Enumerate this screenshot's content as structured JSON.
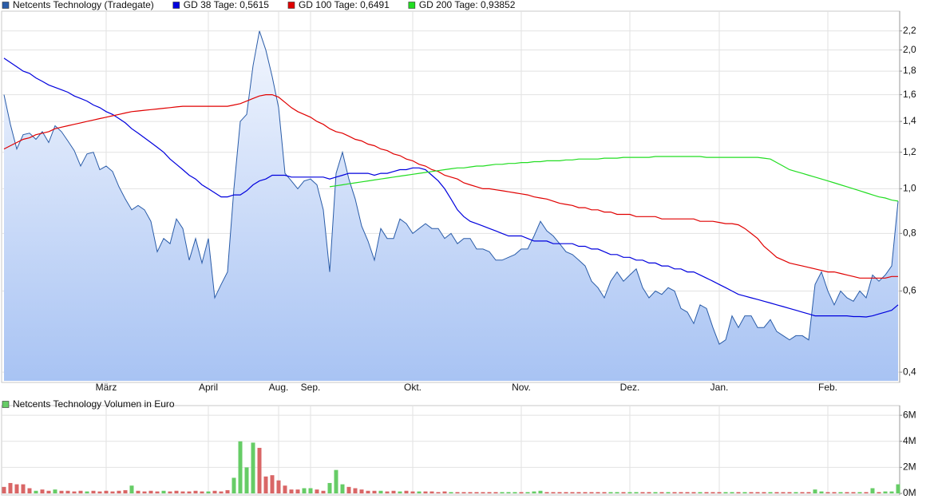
{
  "chart_data": [
    {
      "type": "line",
      "log_scale_y": true,
      "grid": true,
      "categories": [
        null,
        null,
        null,
        null,
        null,
        null,
        null,
        null,
        null,
        null,
        null,
        null,
        null,
        null,
        null,
        null,
        "März",
        null,
        null,
        null,
        null,
        null,
        null,
        null,
        null,
        null,
        null,
        null,
        null,
        null,
        null,
        null,
        "April",
        null,
        null,
        null,
        null,
        null,
        null,
        null,
        null,
        null,
        null,
        "Aug.",
        null,
        null,
        null,
        null,
        "Sep.",
        null,
        null,
        null,
        null,
        null,
        null,
        null,
        null,
        null,
        null,
        null,
        null,
        null,
        null,
        null,
        "Okt.",
        null,
        null,
        null,
        null,
        null,
        null,
        null,
        null,
        null,
        null,
        null,
        null,
        null,
        null,
        null,
        null,
        "Nov.",
        null,
        null,
        null,
        null,
        null,
        null,
        null,
        null,
        null,
        null,
        null,
        null,
        null,
        null,
        null,
        null,
        "Dez.",
        null,
        null,
        null,
        null,
        null,
        null,
        null,
        null,
        null,
        null,
        null,
        null,
        null,
        "Jan.",
        null,
        null,
        null,
        null,
        null,
        null,
        null,
        null,
        null,
        null,
        null,
        null,
        null,
        null,
        null,
        null,
        "Feb.",
        null,
        null,
        null,
        null,
        null,
        null,
        null,
        null,
        null,
        null,
        null
      ],
      "series": [
        {
          "name": "Netcents Technology (Tradegate)",
          "color": "#2a5ca8",
          "area": true,
          "values": [
            1.6,
            1.38,
            1.22,
            1.31,
            1.32,
            1.28,
            1.33,
            1.26,
            1.37,
            1.33,
            1.27,
            1.21,
            1.12,
            1.19,
            1.2,
            1.1,
            1.12,
            1.09,
            1.01,
            0.95,
            0.9,
            0.92,
            0.9,
            0.85,
            0.73,
            0.78,
            0.76,
            0.86,
            0.82,
            0.7,
            0.78,
            0.69,
            0.78,
            0.58,
            0.62,
            0.66,
            1.0,
            1.4,
            1.45,
            1.85,
            2.2,
            2.0,
            1.75,
            1.5,
            1.08,
            1.04,
            1.0,
            1.04,
            1.05,
            1.02,
            0.9,
            0.66,
            1.08,
            1.2,
            1.05,
            0.95,
            0.83,
            0.77,
            0.7,
            0.82,
            0.78,
            0.78,
            0.86,
            0.84,
            0.8,
            0.82,
            0.84,
            0.82,
            0.82,
            0.78,
            0.8,
            0.76,
            0.78,
            0.78,
            0.74,
            0.74,
            0.73,
            0.7,
            0.7,
            0.71,
            0.72,
            0.74,
            0.74,
            0.79,
            0.85,
            0.81,
            0.79,
            0.76,
            0.73,
            0.72,
            0.7,
            0.68,
            0.63,
            0.61,
            0.58,
            0.63,
            0.66,
            0.63,
            0.65,
            0.67,
            0.61,
            0.58,
            0.6,
            0.59,
            0.61,
            0.6,
            0.55,
            0.54,
            0.51,
            0.56,
            0.55,
            0.5,
            0.46,
            0.47,
            0.53,
            0.5,
            0.53,
            0.53,
            0.5,
            0.5,
            0.52,
            0.49,
            0.48,
            0.47,
            0.48,
            0.48,
            0.47,
            0.62,
            0.66,
            0.6,
            0.56,
            0.6,
            0.58,
            0.57,
            0.6,
            0.58,
            0.65,
            0.63,
            0.65,
            0.68,
            0.94
          ]
        },
        {
          "name": "GD 38 Tage: 0,5615",
          "color": "#0000dd",
          "values": [
            1.92,
            1.88,
            1.84,
            1.8,
            1.78,
            1.74,
            1.71,
            1.68,
            1.66,
            1.64,
            1.62,
            1.59,
            1.57,
            1.55,
            1.52,
            1.5,
            1.47,
            1.45,
            1.42,
            1.39,
            1.35,
            1.32,
            1.29,
            1.26,
            1.23,
            1.2,
            1.16,
            1.13,
            1.1,
            1.07,
            1.05,
            1.02,
            1.0,
            0.98,
            0.96,
            0.96,
            0.97,
            0.97,
            0.99,
            1.02,
            1.04,
            1.05,
            1.07,
            1.07,
            1.07,
            1.06,
            1.06,
            1.06,
            1.06,
            1.06,
            1.06,
            1.05,
            1.06,
            1.07,
            1.08,
            1.08,
            1.08,
            1.08,
            1.07,
            1.08,
            1.08,
            1.09,
            1.1,
            1.1,
            1.11,
            1.11,
            1.1,
            1.07,
            1.04,
            1.0,
            0.95,
            0.9,
            0.87,
            0.85,
            0.84,
            0.83,
            0.82,
            0.81,
            0.8,
            0.79,
            0.79,
            0.79,
            0.78,
            0.77,
            0.77,
            0.77,
            0.76,
            0.76,
            0.76,
            0.76,
            0.75,
            0.75,
            0.74,
            0.74,
            0.73,
            0.72,
            0.72,
            0.71,
            0.71,
            0.7,
            0.7,
            0.69,
            0.69,
            0.68,
            0.68,
            0.67,
            0.67,
            0.66,
            0.66,
            0.65,
            0.64,
            0.63,
            0.62,
            0.61,
            0.6,
            0.59,
            0.585,
            0.58,
            0.575,
            0.57,
            0.565,
            0.56,
            0.555,
            0.55,
            0.545,
            0.54,
            0.535,
            0.53,
            0.53,
            0.53,
            0.53,
            0.53,
            0.53,
            0.528,
            0.528,
            0.527,
            0.53,
            0.535,
            0.54,
            0.545,
            0.56
          ]
        },
        {
          "name": "GD 100 Tage: 0,6491",
          "color": "#e00000",
          "values": [
            1.22,
            1.24,
            1.26,
            1.28,
            1.29,
            1.31,
            1.32,
            1.33,
            1.35,
            1.36,
            1.37,
            1.38,
            1.39,
            1.4,
            1.41,
            1.42,
            1.43,
            1.44,
            1.45,
            1.46,
            1.47,
            1.475,
            1.48,
            1.485,
            1.49,
            1.495,
            1.5,
            1.505,
            1.51,
            1.51,
            1.51,
            1.51,
            1.51,
            1.51,
            1.51,
            1.51,
            1.52,
            1.53,
            1.55,
            1.57,
            1.59,
            1.6,
            1.6,
            1.58,
            1.54,
            1.5,
            1.47,
            1.45,
            1.43,
            1.4,
            1.38,
            1.35,
            1.33,
            1.32,
            1.3,
            1.28,
            1.27,
            1.25,
            1.24,
            1.22,
            1.21,
            1.19,
            1.18,
            1.16,
            1.15,
            1.13,
            1.12,
            1.1,
            1.09,
            1.07,
            1.06,
            1.05,
            1.03,
            1.02,
            1.01,
            1.0,
            1.0,
            0.995,
            0.99,
            0.985,
            0.98,
            0.975,
            0.97,
            0.96,
            0.955,
            0.95,
            0.94,
            0.93,
            0.925,
            0.92,
            0.91,
            0.91,
            0.9,
            0.9,
            0.89,
            0.89,
            0.88,
            0.88,
            0.88,
            0.87,
            0.87,
            0.87,
            0.87,
            0.86,
            0.86,
            0.86,
            0.86,
            0.86,
            0.86,
            0.85,
            0.85,
            0.85,
            0.845,
            0.84,
            0.84,
            0.835,
            0.82,
            0.8,
            0.78,
            0.75,
            0.73,
            0.71,
            0.7,
            0.69,
            0.685,
            0.68,
            0.675,
            0.67,
            0.665,
            0.66,
            0.66,
            0.655,
            0.65,
            0.645,
            0.64,
            0.64,
            0.64,
            0.64,
            0.64,
            0.645,
            0.645
          ]
        },
        {
          "name": "GD 200 Tage: 0,93852",
          "color": "#22dd22",
          "values": [
            null,
            null,
            null,
            null,
            null,
            null,
            null,
            null,
            null,
            null,
            null,
            null,
            null,
            null,
            null,
            null,
            null,
            null,
            null,
            null,
            null,
            null,
            null,
            null,
            null,
            null,
            null,
            null,
            null,
            null,
            null,
            null,
            null,
            null,
            null,
            null,
            null,
            null,
            null,
            null,
            null,
            null,
            null,
            null,
            null,
            null,
            null,
            null,
            null,
            null,
            null,
            1.01,
            1.015,
            1.02,
            1.025,
            1.03,
            1.035,
            1.04,
            1.045,
            1.05,
            1.055,
            1.06,
            1.065,
            1.07,
            1.075,
            1.08,
            1.085,
            1.09,
            1.095,
            1.1,
            1.105,
            1.11,
            1.11,
            1.115,
            1.12,
            1.12,
            1.125,
            1.13,
            1.13,
            1.135,
            1.135,
            1.14,
            1.14,
            1.145,
            1.145,
            1.15,
            1.15,
            1.15,
            1.155,
            1.155,
            1.16,
            1.16,
            1.16,
            1.16,
            1.165,
            1.165,
            1.165,
            1.17,
            1.17,
            1.17,
            1.17,
            1.17,
            1.175,
            1.175,
            1.175,
            1.175,
            1.175,
            1.175,
            1.175,
            1.175,
            1.17,
            1.17,
            1.17,
            1.17,
            1.17,
            1.17,
            1.17,
            1.17,
            1.17,
            1.165,
            1.16,
            1.14,
            1.12,
            1.1,
            1.09,
            1.08,
            1.07,
            1.06,
            1.05,
            1.04,
            1.03,
            1.02,
            1.01,
            1.0,
            0.99,
            0.98,
            0.97,
            0.96,
            0.955,
            0.945,
            0.94
          ]
        }
      ],
      "ylim": [
        0.383,
        2.39
      ],
      "yticks": [
        {
          "value": 0.4,
          "label": "0,4"
        },
        {
          "value": 0.6,
          "label": "0,6"
        },
        {
          "value": 0.8,
          "label": "0,8"
        },
        {
          "value": 1.0,
          "label": "1,0"
        },
        {
          "value": 1.2,
          "label": "1,2"
        },
        {
          "value": 1.4,
          "label": "1,4"
        },
        {
          "value": 1.6,
          "label": "1,6"
        },
        {
          "value": 1.8,
          "label": "1,8"
        },
        {
          "value": 2.0,
          "label": "2,0"
        },
        {
          "value": 2.2,
          "label": "2,2"
        }
      ]
    },
    {
      "type": "bar",
      "grid": true,
      "series_name": "Netcents Technology Volumen in Euro",
      "legend_color": "#66cc66",
      "values": [
        500000,
        800000,
        700000,
        700000,
        400000,
        200000,
        300000,
        200000,
        300000,
        200000,
        200000,
        150000,
        200000,
        150000,
        200000,
        150000,
        200000,
        150000,
        200000,
        250000,
        600000,
        200000,
        150000,
        200000,
        150000,
        200000,
        150000,
        200000,
        150000,
        150000,
        200000,
        150000,
        150000,
        200000,
        150000,
        250000,
        1200000,
        4000000,
        2000000,
        3900000,
        3500000,
        1300000,
        1400000,
        1000000,
        600000,
        300000,
        300000,
        400000,
        400000,
        300000,
        200000,
        800000,
        1800000,
        700000,
        500000,
        400000,
        300000,
        200000,
        200000,
        200000,
        150000,
        200000,
        150000,
        200000,
        150000,
        150000,
        150000,
        150000,
        100000,
        150000,
        100000,
        100000,
        100000,
        100000,
        100000,
        100000,
        100000,
        100000,
        100000,
        100000,
        100000,
        100000,
        100000,
        150000,
        200000,
        100000,
        100000,
        100000,
        100000,
        100000,
        100000,
        100000,
        100000,
        100000,
        100000,
        100000,
        100000,
        100000,
        100000,
        100000,
        100000,
        100000,
        100000,
        100000,
        100000,
        100000,
        100000,
        100000,
        100000,
        100000,
        100000,
        100000,
        100000,
        100000,
        100000,
        100000,
        100000,
        100000,
        100000,
        100000,
        100000,
        100000,
        100000,
        100000,
        100000,
        100000,
        100000,
        300000,
        150000,
        100000,
        100000,
        100000,
        100000,
        100000,
        100000,
        100000,
        400000,
        100000,
        150000,
        150000,
        700000
      ],
      "colors": [
        "#d96666",
        "#d96666",
        "#d96666",
        "#d96666",
        "#d96666",
        "#66cc66",
        "#d96666",
        "#d96666",
        "#66cc66",
        "#d96666",
        "#d96666",
        "#d96666",
        "#d96666",
        "#66cc66",
        "#d96666",
        "#d96666",
        "#d96666",
        "#d96666",
        "#d96666",
        "#d96666",
        "#66cc66",
        "#d96666",
        "#d96666",
        "#d96666",
        "#d96666",
        "#66cc66",
        "#d96666",
        "#d96666",
        "#d96666",
        "#d96666",
        "#d96666",
        "#d96666",
        "#66cc66",
        "#d96666",
        "#d96666",
        "#d96666",
        "#66cc66",
        "#66cc66",
        "#66cc66",
        "#66cc66",
        "#d96666",
        "#d96666",
        "#d96666",
        "#d96666",
        "#d96666",
        "#d96666",
        "#d96666",
        "#66cc66",
        "#66cc66",
        "#d96666",
        "#d96666",
        "#66cc66",
        "#66cc66",
        "#66cc66",
        "#d96666",
        "#d96666",
        "#d96666",
        "#d96666",
        "#d96666",
        "#66cc66",
        "#d96666",
        "#d96666",
        "#66cc66",
        "#d96666",
        "#d96666",
        "#66cc66",
        "#d96666",
        "#d96666",
        "#d96666",
        "#d96666",
        "#66cc66",
        "#d96666",
        "#d96666",
        "#d96666",
        "#d96666",
        "#d96666",
        "#d96666",
        "#d96666",
        "#66cc66",
        "#66cc66",
        "#66cc66",
        "#d96666",
        "#66cc66",
        "#66cc66",
        "#66cc66",
        "#d96666",
        "#d96666",
        "#d96666",
        "#d96666",
        "#d96666",
        "#d96666",
        "#d96666",
        "#d96666",
        "#d96666",
        "#d96666",
        "#66cc66",
        "#66cc66",
        "#d96666",
        "#66cc66",
        "#66cc66",
        "#d96666",
        "#d96666",
        "#66cc66",
        "#d96666",
        "#66cc66",
        "#d96666",
        "#d96666",
        "#d96666",
        "#d96666",
        "#66cc66",
        "#d96666",
        "#d96666",
        "#d96666",
        "#66cc66",
        "#66cc66",
        "#d96666",
        "#66cc66",
        "#d96666",
        "#d96666",
        "#d96666",
        "#66cc66",
        "#d96666",
        "#d96666",
        "#d96666",
        "#66cc66",
        "#d96666",
        "#d96666",
        "#66cc66",
        "#66cc66",
        "#d96666",
        "#d96666",
        "#66cc66",
        "#d96666",
        "#d96666",
        "#66cc66",
        "#d96666",
        "#66cc66",
        "#d96666",
        "#66cc66",
        "#66cc66",
        "#66cc66"
      ],
      "ylim": [
        0,
        6500000
      ],
      "yticks": [
        {
          "value": 0,
          "label": "0M"
        },
        {
          "value": 2000000,
          "label": "2M"
        },
        {
          "value": 4000000,
          "label": "4M"
        },
        {
          "value": 6000000,
          "label": "6M"
        }
      ]
    }
  ]
}
